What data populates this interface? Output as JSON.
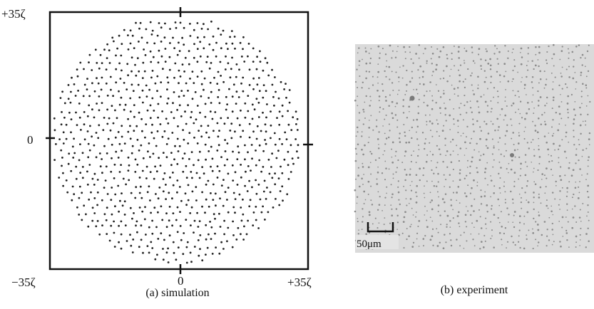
{
  "panel_a": {
    "y_labels": [
      "+35ζ",
      "0"
    ],
    "x_labels": [
      "−35ζ",
      "0",
      "+35ζ"
    ],
    "caption": "(a) simulation"
  },
  "panel_b": {
    "scale_bar": "50μm",
    "caption": "(b) experiment"
  }
}
